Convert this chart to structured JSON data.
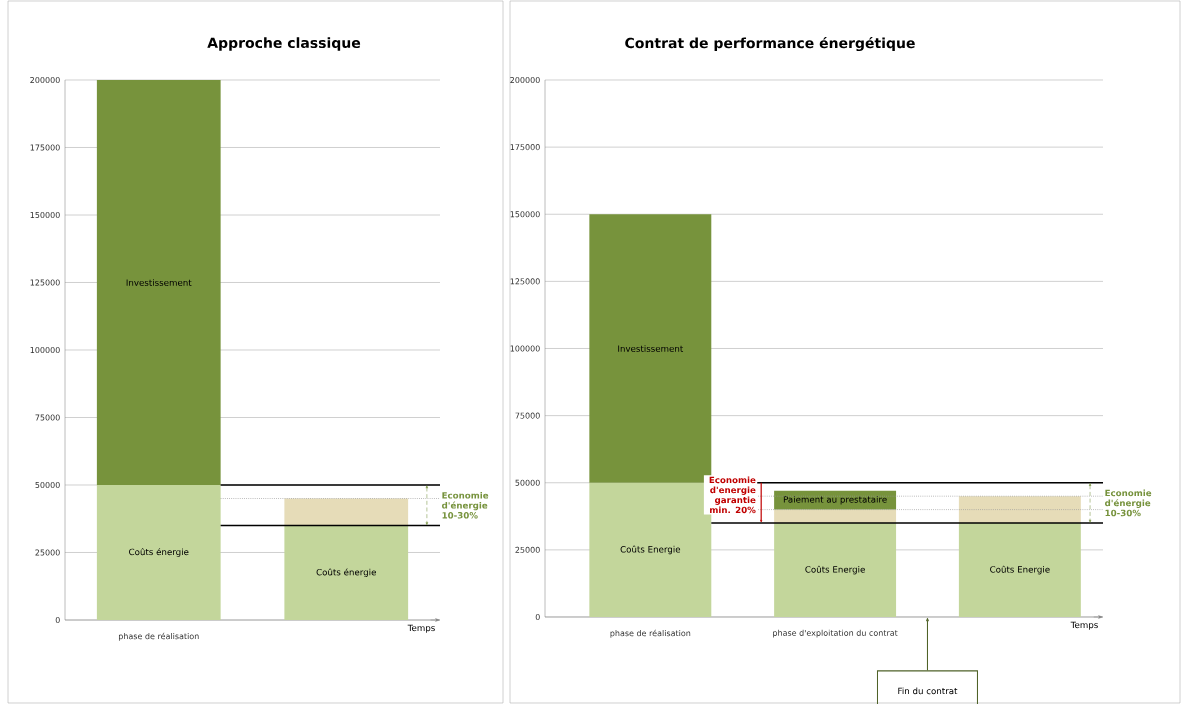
{
  "chart_data": [
    {
      "type": "bar",
      "title": "Approche classique",
      "xlabel": "Temps",
      "stacked": true,
      "grid": "y",
      "categories": [
        "phase de réalisation",
        null
      ],
      "series": [
        {
          "name": "Coûts énergie",
          "color": "#c3d69b",
          "values": [
            50000,
            35000
          ]
        },
        {
          "name": "Investissement",
          "color": "#77933c",
          "values": [
            150000,
            null
          ]
        },
        {
          "color": "#e6dcb8",
          "values": [
            null,
            10000
          ]
        }
      ],
      "ylim": [
        0,
        200000
      ],
      "yticks": [
        0,
        25000,
        50000,
        75000,
        100000,
        125000,
        150000,
        175000,
        200000
      ],
      "ref_lines": [
        {
          "axis": "y",
          "value": 50000,
          "color": "#000000",
          "line_style": "solid"
        },
        {
          "axis": "y",
          "value": 45000,
          "color": "#999999",
          "line_style": "dotted"
        },
        {
          "axis": "y",
          "value": 35000,
          "color": "#000000",
          "line_style": "solid"
        }
      ],
      "annotations": [
        "Economie d'énergie 10-30%"
      ]
    },
    {
      "type": "bar",
      "title": "Contrat de performance énergétique",
      "xlabel": "Temps",
      "stacked": true,
      "grid": "y",
      "categories": [
        "phase de réalisation",
        "phase d'exploitation  du contrat",
        null
      ],
      "series": [
        {
          "name": "Coûts Energie",
          "color": "#c3d69b",
          "values": [
            50000,
            35000,
            35000
          ]
        },
        {
          "name": "Investissement",
          "color": "#77933c",
          "values": [
            100000,
            null,
            null
          ]
        },
        {
          "color": "#e6dcb8",
          "values": [
            null,
            5000,
            10000
          ]
        },
        {
          "name": "Paiement au prestataire",
          "color": "#77933c",
          "values": [
            null,
            7000,
            null
          ]
        }
      ],
      "ylim": [
        0,
        200000
      ],
      "yticks": [
        0,
        25000,
        50000,
        75000,
        100000,
        125000,
        150000,
        175000,
        200000
      ],
      "ref_lines": [
        {
          "axis": "y",
          "value": 50000,
          "color": "#000000",
          "line_style": "solid"
        },
        {
          "axis": "y",
          "value": 45000,
          "color": "#999999",
          "line_style": "dotted"
        },
        {
          "axis": "y",
          "value": 40000,
          "color": "#999999",
          "line_style": "dotted"
        },
        {
          "axis": "y",
          "value": 35000,
          "color": "#000000",
          "line_style": "solid"
        }
      ],
      "annotations": [
        {
          "text": "Economie d'energie garantie min. 20%",
          "y": 35000
        },
        "Economie d'énergie 10-30%",
        "Fin du contrat"
      ]
    }
  ]
}
